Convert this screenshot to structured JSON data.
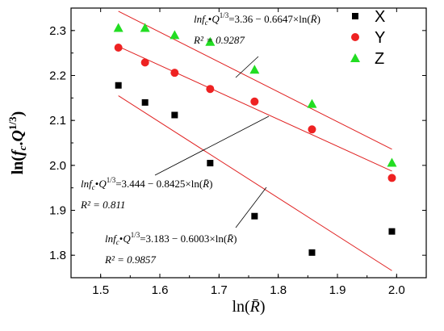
{
  "chart_data": {
    "type": "scatter",
    "title": "",
    "xlabel": "ln(R̄)",
    "ylabel": "ln(f_c·Q^1/3)",
    "xlim": [
      1.45,
      2.05
    ],
    "ylim": [
      1.75,
      2.35
    ],
    "xticks": [
      "1.5",
      "1.6",
      "1.7",
      "1.8",
      "1.9",
      "2.0"
    ],
    "yticks": [
      "1.8",
      "1.9",
      "2.0",
      "2.1",
      "2.2",
      "2.3"
    ],
    "grid": false,
    "legend_position": "top-right",
    "x": [
      1.53,
      1.575,
      1.625,
      1.685,
      1.76,
      1.857,
      1.992
    ],
    "series": [
      {
        "name": "X",
        "marker": "square",
        "color": "#000000",
        "values": [
          2.178,
          2.14,
          2.112,
          2.005,
          1.887,
          1.806,
          1.853
        ],
        "fit": {
          "intercept": 3.183,
          "slope": -0.6003,
          "r2": "0.9857"
        }
      },
      {
        "name": "Y",
        "marker": "circle",
        "color": "#ee2222",
        "values": [
          2.262,
          2.229,
          2.206,
          2.17,
          2.142,
          2.08,
          1.972
        ],
        "fit": {
          "intercept": 3.444,
          "slope": -0.8425,
          "r2": "0.811"
        }
      },
      {
        "name": "Z",
        "marker": "triangle",
        "color": "#22dd22",
        "values": [
          2.306,
          2.306,
          2.29,
          2.275,
          2.213,
          2.137,
          2.006
        ],
        "fit": {
          "intercept": 3.36,
          "slope": -0.6647,
          "r2": "0.9287"
        }
      }
    ],
    "fit_line_color": "#e02020",
    "fit_x_range": [
      1.53,
      1.992
    ],
    "annotations": [
      {
        "eq": "lnf_c•Q^1/3=3.36 − 0.6647×ln(R̄)",
        "r2_text": "R² = 0.9287"
      },
      {
        "eq": "lnf_c•Q^1/3=3.444 − 0.8425×ln(R̄)",
        "r2_text": "R² = 0.811"
      },
      {
        "eq": "lnf_c•Q^1/3=3.183 − 0.6003×ln(R̄)",
        "r2_text": "R² = 0.9857"
      }
    ]
  }
}
